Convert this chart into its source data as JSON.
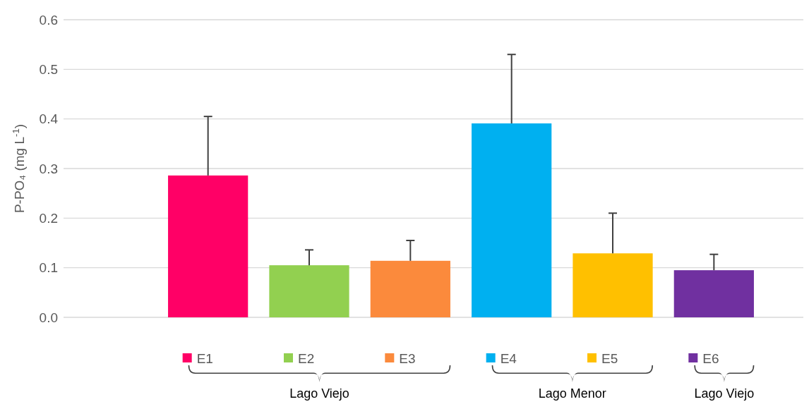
{
  "chart_data": {
    "type": "bar",
    "ylabel": "P-PO₄ (mg L$^{-1}$)",
    "categories": [
      "E1",
      "E2",
      "E3",
      "E4",
      "E5",
      "E6"
    ],
    "values": [
      0.286,
      0.105,
      0.114,
      0.391,
      0.129,
      0.095
    ],
    "colors": [
      "#ff0066",
      "#92d050",
      "#fb8a3c",
      "#00b0f0",
      "#ffc000",
      "#7030a0"
    ],
    "errors": [
      [
        0.286,
        0.405
      ],
      [
        0.105,
        0.136
      ],
      [
        0.114,
        0.155
      ],
      [
        0.391,
        0.53
      ],
      [
        0.129,
        0.21
      ],
      [
        0.095,
        0.127
      ]
    ],
    "ylim": [
      0,
      0.6
    ],
    "yticks": [
      {
        "value": 0,
        "label": "0.0"
      },
      0.1,
      0.2,
      0.3,
      0.4,
      0.5,
      0.6
    ],
    "grid": "y",
    "annotations": [
      "Lago Viejo",
      "Lago Menor",
      "Lago Viejo"
    ]
  }
}
